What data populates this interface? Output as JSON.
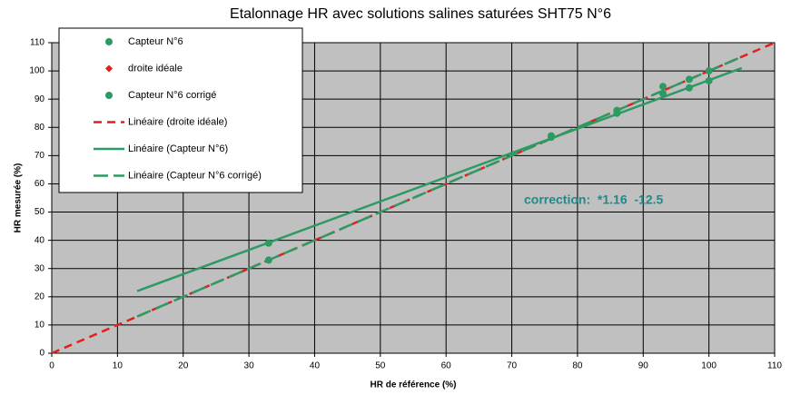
{
  "chart_data": {
    "type": "scatter",
    "title": "Etalonnage HR avec solutions salines saturées SHT75 N°6",
    "x_label": "HR de référence (%)",
    "y_label": "HR mesurée (%)",
    "annotation": "correction:  *1.16  -12.5",
    "xlim": [
      0,
      110
    ],
    "ylim": [
      0,
      110
    ],
    "xticks": [
      0,
      10,
      20,
      30,
      40,
      50,
      60,
      70,
      80,
      90,
      100,
      110
    ],
    "yticks": [
      0,
      10,
      20,
      30,
      40,
      50,
      60,
      70,
      80,
      90,
      100,
      110
    ],
    "grid": true,
    "legend": "upper left",
    "series": [
      {
        "name": "Capteur N°6",
        "color": "#2e9a63",
        "style": "circle",
        "x": [
          33,
          76,
          86,
          93,
          97,
          100
        ],
        "values": [
          39,
          76.5,
          85,
          92,
          94,
          96.5
        ]
      },
      {
        "name": "droite idéale",
        "color": "#e0201c",
        "style": "diamond",
        "x": [
          100
        ],
        "values": [
          100
        ]
      },
      {
        "name": "Capteur N°6 corrigé",
        "color": "#2e9a63",
        "style": "circle",
        "x": [
          33,
          76,
          86,
          93,
          97,
          100
        ],
        "values": [
          33,
          77,
          86,
          94.5,
          97,
          100
        ]
      },
      {
        "name": "Linéaire (droite idéale)",
        "color": "#e0201c",
        "style": "dash",
        "x": [
          0,
          110
        ],
        "values": [
          0,
          110
        ]
      },
      {
        "name": "Linéaire (Capteur N°6)",
        "color": "#2e9a63",
        "style": "solid",
        "x": [
          13,
          105
        ],
        "values": [
          22,
          101
        ]
      },
      {
        "name": "Linéaire (Capteur N°6 corrigé)",
        "color": "#2e9a63",
        "style": "longdash",
        "x": [
          13,
          105
        ],
        "values": [
          13,
          105
        ]
      }
    ]
  }
}
